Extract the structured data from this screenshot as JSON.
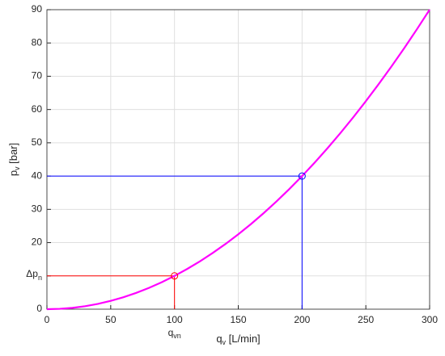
{
  "chart_data": {
    "type": "line",
    "x": [
      0,
      10,
      20,
      30,
      40,
      50,
      60,
      70,
      80,
      90,
      100,
      110,
      120,
      130,
      140,
      150,
      160,
      170,
      180,
      190,
      200,
      210,
      220,
      230,
      240,
      250,
      260,
      270,
      280,
      290,
      300
    ],
    "series": [
      {
        "color": "#ff00ff",
        "values": [
          0,
          0.1,
          0.4,
          0.9,
          1.6,
          2.5,
          3.6,
          4.9,
          6.4,
          8.1,
          10,
          12.1,
          14.4,
          16.9,
          19.6,
          22.5,
          25.6,
          28.9,
          32.4,
          36.1,
          40,
          44.1,
          48.4,
          52.9,
          57.6,
          62.5,
          67.6,
          72.9,
          78.4,
          84.1,
          90
        ]
      }
    ],
    "points": [
      {
        "x": 100,
        "y": 10,
        "color": "#ff0000"
      },
      {
        "x": 200,
        "y": 40,
        "color": "#0000ff"
      }
    ],
    "xlim": [
      0,
      300
    ],
    "xticks": [
      0,
      50,
      100,
      150,
      200,
      250,
      300
    ],
    "ylim": [
      0,
      90
    ],
    "yticks": [
      0,
      {
        "value": 10,
        "label": "Δp",
        "label_sub": "n"
      },
      20,
      30,
      40,
      50,
      60,
      70,
      80,
      90
    ],
    "xlabel": [
      {
        "text": "q"
      },
      {
        "text": "v",
        "sub": true
      },
      {
        "text": " [L/min]"
      }
    ],
    "ylabel": [
      {
        "text": "p"
      },
      {
        "text": "v",
        "sub": true
      },
      {
        "text": " [bar]"
      }
    ],
    "annotations": [
      {
        "x": 100,
        "parts": [
          {
            "text": "q"
          },
          {
            "text": "vn",
            "sub": true
          }
        ]
      }
    ],
    "grid": true
  }
}
